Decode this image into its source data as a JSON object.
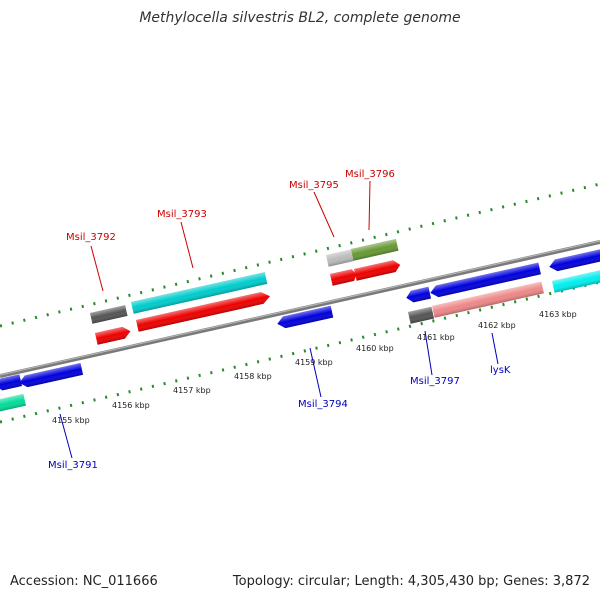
{
  "title": "Methylocella silvestris BL2, complete genome",
  "footer": {
    "accession": "Accession: NC_011666",
    "topology": "Topology: circular; Length: 4,305,430 bp; Genes: 3,872"
  },
  "kbp_labels": [
    "4155 kbp",
    "4156 kbp",
    "4157 kbp",
    "4158 kbp",
    "4159 kbp",
    "4160 kbp",
    "4161 kbp",
    "4162 kbp",
    "4163 kbp"
  ],
  "gene_labels": {
    "top": [
      "Msil_3792",
      "Msil_3793",
      "Msil_3795",
      "Msil_3796"
    ],
    "bottom": [
      "Msil_3791",
      "Msil_3794",
      "Msil_3797",
      "lysK"
    ]
  },
  "colors": {
    "top_label": "#cc0000",
    "bottom_label": "#0000bb",
    "backbone": "#808080",
    "ticks": "#2a8a2a",
    "red": "#ee0000",
    "blue": "#0000dd",
    "cyan": "#00cccc",
    "salmon": "#ee8888",
    "olive": "#669933",
    "gray": "#555555",
    "lightgray": "#bbbbbb",
    "mint": "#00dd99"
  }
}
